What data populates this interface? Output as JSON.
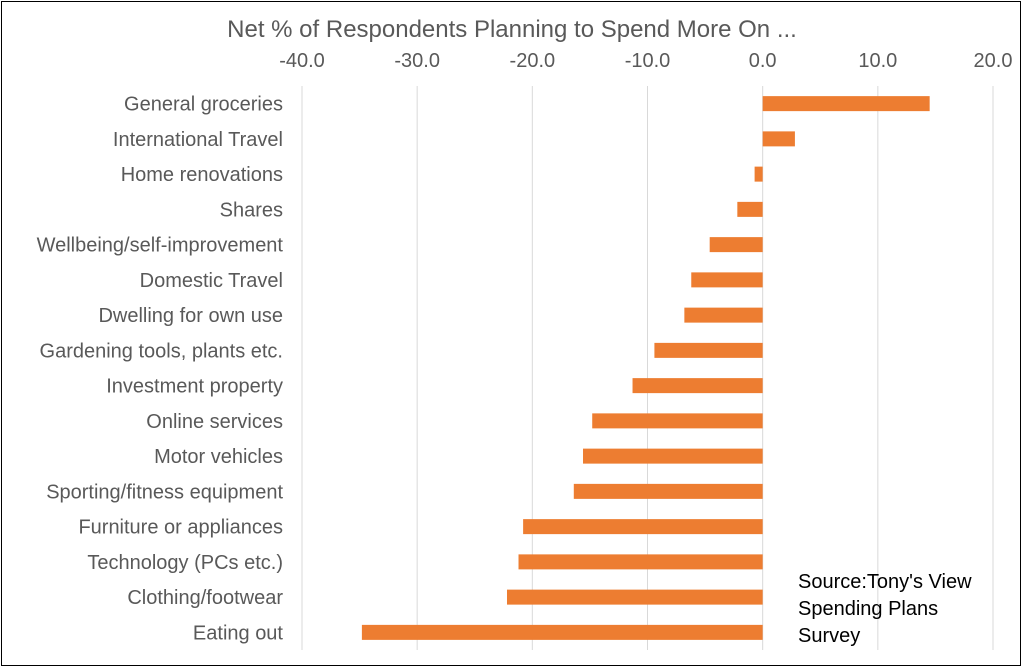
{
  "chart_data": {
    "type": "bar",
    "orientation": "horizontal",
    "title": "Net % of Respondents Planning to Spend More On ...",
    "xlabel": "",
    "ylabel": "",
    "xlim": [
      -40,
      20
    ],
    "xticks": [
      -40,
      -30,
      -20,
      -10,
      0,
      10,
      20
    ],
    "xtick_labels": [
      "-40.0",
      "-30.0",
      "-20.0",
      "-10.0",
      "0.0",
      "10.0",
      "20.0"
    ],
    "grid": "vertical",
    "axis_position": "top",
    "bar_color": "#ed7d31",
    "categories": [
      "General groceries",
      "International Travel",
      "Home renovations",
      "Shares",
      "Wellbeing/self-improvement",
      "Domestic Travel",
      "Dwelling for own use",
      "Gardening tools, plants etc.",
      "Investment property",
      "Online services",
      "Motor vehicles",
      "Sporting/fitness equipment",
      "Furniture or appliances",
      "Technology (PCs etc.)",
      "Clothing/footwear",
      "Eating out"
    ],
    "values": [
      14.5,
      2.8,
      -0.7,
      -2.2,
      -4.6,
      -6.2,
      -6.8,
      -9.4,
      -11.3,
      -14.8,
      -15.6,
      -16.4,
      -20.8,
      -21.2,
      -22.2,
      -34.8
    ],
    "annotation": [
      "Source:Tony's View",
      "Spending Plans",
      "Survey"
    ]
  }
}
